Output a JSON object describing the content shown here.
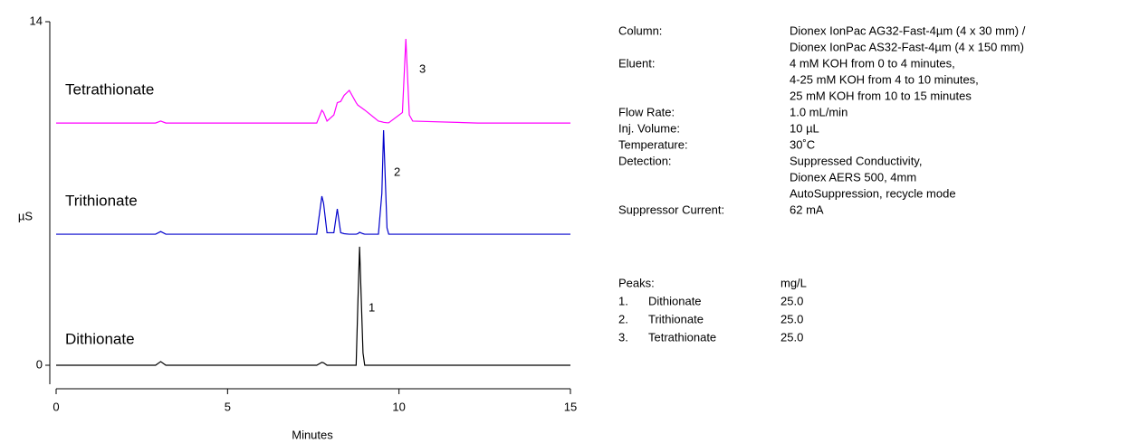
{
  "chart_data": {
    "type": "line",
    "x_label": "Minutes",
    "y_label": "µS",
    "xlim": [
      0,
      15
    ],
    "ylim": [
      0,
      14
    ],
    "xticks": [
      0,
      5,
      10,
      15
    ],
    "yticks": [
      0,
      14
    ],
    "x": [
      0,
      2.9,
      3.05,
      3.2,
      7.6,
      7.75,
      7.8,
      7.9,
      8.1,
      8.2,
      8.3,
      8.4,
      8.55,
      8.75,
      8.8,
      8.85,
      8.95,
      9.0,
      9.4,
      9.5,
      9.55,
      9.65,
      9.7,
      10.1,
      10.2,
      10.3,
      10.4,
      12.3,
      15
    ],
    "series": [
      {
        "name": "Dithionate",
        "color": "#000000",
        "values": [
          0,
          0,
          0.15,
          0,
          0,
          0.12,
          0.1,
          0,
          0,
          0,
          0,
          0,
          0,
          0,
          2.5,
          4.83,
          0.5,
          0,
          0,
          0,
          0,
          0,
          0,
          0,
          0,
          0,
          0,
          0,
          0
        ]
      },
      {
        "name": "Trithionate",
        "color": "#0000cc",
        "values": [
          5.34,
          5.34,
          5.45,
          5.34,
          5.34,
          6.89,
          6.6,
          5.4,
          5.4,
          6.37,
          5.4,
          5.36,
          5.34,
          5.34,
          5.36,
          5.42,
          5.36,
          5.34,
          5.34,
          7.0,
          9.58,
          5.6,
          5.34,
          5.34,
          5.34,
          5.34,
          5.34,
          5.34,
          5.34
        ]
      },
      {
        "name": "Tetrathionate",
        "color": "#ff00ff",
        "values": [
          9.87,
          9.87,
          9.95,
          9.87,
          9.87,
          10.39,
          10.3,
          9.95,
          10.2,
          10.7,
          10.75,
          11.0,
          11.2,
          10.7,
          10.6,
          10.55,
          10.45,
          10.4,
          9.95,
          9.92,
          9.9,
          9.88,
          9.88,
          10.3,
          13.3,
          10.2,
          9.95,
          9.87,
          9.87
        ]
      }
    ],
    "peak_labels": [
      "1",
      "2",
      "3"
    ]
  },
  "conditions": [
    {
      "label": "Column:",
      "lines": [
        "Dionex IonPac AG32-Fast-4µm (4 x 30 mm) /",
        "Dionex IonPac AS32-Fast-4µm (4 x 150 mm)"
      ]
    },
    {
      "label": "Eluent:",
      "lines": [
        "4 mM KOH from 0 to 4 minutes,",
        "4-25 mM KOH from 4 to 10 minutes,",
        "25 mM KOH from 10 to 15 minutes"
      ]
    },
    {
      "label": "Flow Rate:",
      "lines": [
        "1.0 mL/min"
      ]
    },
    {
      "label": "Inj. Volume:",
      "lines": [
        "10 µL"
      ]
    },
    {
      "label": "Temperature:",
      "lines": [
        "30˚C"
      ]
    },
    {
      "label": "Detection:",
      "lines": [
        "Suppressed Conductivity,",
        "Dionex AERS 500, 4mm",
        "AutoSuppression, recycle mode"
      ]
    },
    {
      "label": "Suppressor Current:",
      "lines": [
        "62 mA"
      ]
    }
  ],
  "peaks": {
    "header": [
      "Peaks:",
      "mg/L"
    ],
    "rows": [
      [
        "1.",
        "Dithionate",
        "25.0"
      ],
      [
        "2.",
        "Trithionate",
        "25.0"
      ],
      [
        "3.",
        "Tetrathionate",
        "25.0"
      ]
    ]
  }
}
